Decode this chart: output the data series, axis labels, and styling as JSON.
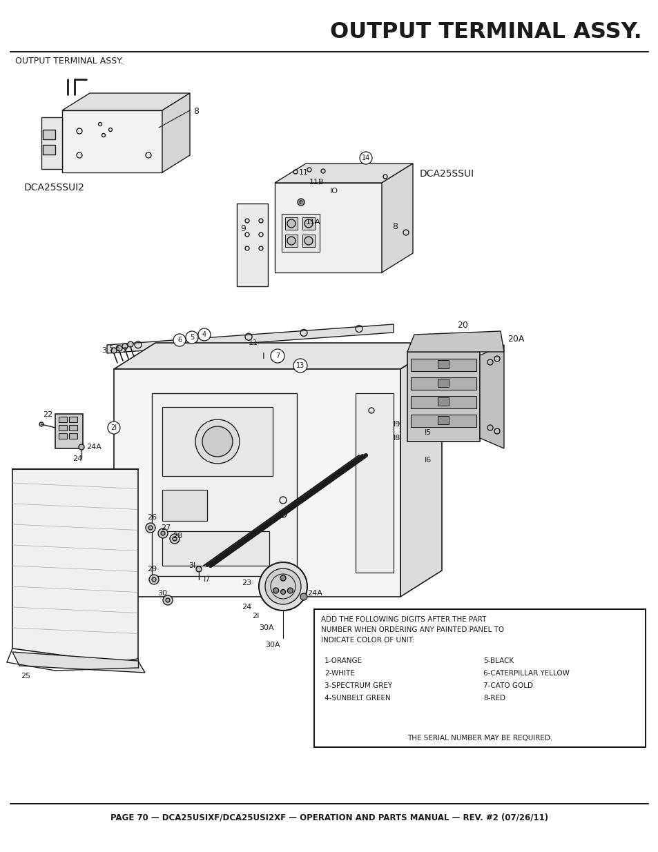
{
  "title": "OUTPUT TERMINAL ASSY.",
  "subtitle": "OUTPUT TERMINAL ASSY.",
  "footer": "PAGE 70 — DCA25USIXF/DCA25USI2XF — OPERATION AND PARTS MANUAL — REV. #2 (07/26/11)",
  "note_box": {
    "header": "ADD THE FOLLOWING DIGITS AFTER THE PART\nNUMBER WHEN ORDERING ANY PAINTED PANEL TO\nINDICATE COLOR OF UNIT:",
    "items_col1": [
      "1-ORANGE",
      "2-WHITE",
      "3-SPECTRUM GREY",
      "4-SUNBELT GREEN"
    ],
    "items_col2": [
      "5-BLACK",
      "6-CATERPILLAR YELLOW",
      "7-CATO GOLD",
      "8-RED"
    ],
    "footer": "THE SERIAL NUMBER MAY BE REQUIRED."
  },
  "label1": "DCA25SSUI2",
  "label2": "DCA25SSUI",
  "bg_color": "#ffffff",
  "line_color": "#1a1a1a",
  "text_color": "#1a1a1a"
}
